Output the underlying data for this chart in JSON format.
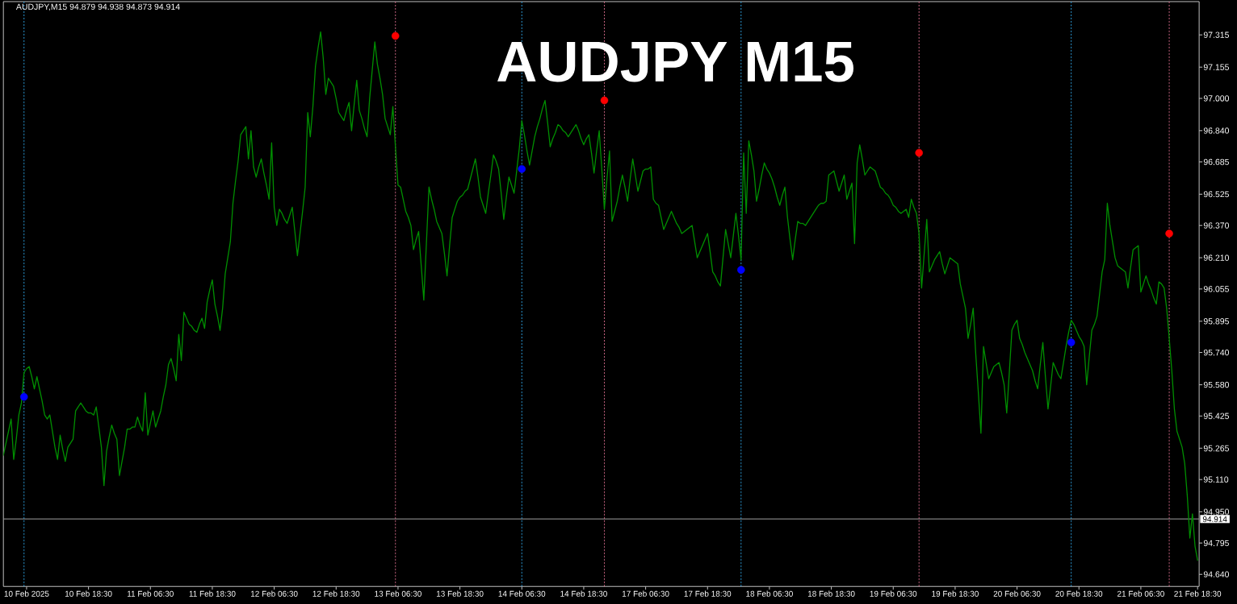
{
  "chart_data": {
    "type": "line",
    "title": "AUDJPY M15",
    "annotations": [
      "AUDJPY,M15 94.879 94.938 94.873 94.914"
    ],
    "categories": [
      null,
      null,
      null,
      null,
      null,
      null,
      null,
      null,
      null,
      "10 Feb 2025",
      null,
      null,
      null,
      null,
      null,
      null,
      null,
      null,
      null,
      null,
      null,
      null,
      null,
      null,
      null,
      null,
      null,
      null,
      null,
      null,
      null,
      null,
      null,
      "10 Feb 18:30",
      null,
      null,
      null,
      null,
      null,
      null,
      null,
      null,
      null,
      null,
      null,
      null,
      null,
      null,
      null,
      null,
      null,
      null,
      null,
      null,
      null,
      null,
      null,
      "11 Feb 06:30",
      null,
      null,
      null,
      null,
      null,
      null,
      null,
      null,
      null,
      null,
      null,
      null,
      null,
      null,
      null,
      null,
      null,
      null,
      null,
      null,
      null,
      null,
      null,
      "11 Feb 18:30",
      null,
      null,
      null,
      null,
      null,
      null,
      null,
      null,
      null,
      null,
      null,
      null,
      null,
      null,
      null,
      null,
      null,
      null,
      null,
      null,
      null,
      null,
      null,
      "12 Feb 06:30",
      null,
      null,
      null,
      null,
      null,
      null,
      null,
      null,
      null,
      null,
      null,
      null,
      null,
      null,
      null,
      null,
      null,
      null,
      null,
      null,
      null,
      null,
      null,
      "12 Feb 18:30",
      null,
      null,
      null,
      null,
      null,
      null,
      null,
      null,
      null,
      null,
      null,
      null,
      null,
      null,
      null,
      null,
      null,
      null,
      null,
      null,
      null,
      null,
      null,
      "13 Feb 06:30",
      null,
      null,
      null,
      null,
      null,
      null,
      null,
      null,
      null,
      null,
      null,
      null,
      null,
      null,
      null,
      null,
      null,
      null,
      null,
      null,
      null,
      null,
      null,
      "13 Feb 18:30",
      null,
      null,
      null,
      null,
      null,
      null,
      null,
      null,
      null,
      null,
      null,
      null,
      null,
      null,
      null,
      null,
      null,
      null,
      null,
      null,
      null,
      null,
      null,
      "14 Feb 06:30",
      null,
      null,
      null,
      null,
      null,
      null,
      null,
      null,
      null,
      null,
      null,
      null,
      null,
      null,
      null,
      null,
      null,
      null,
      null,
      null,
      null,
      null,
      null,
      "14 Feb 18:30",
      null,
      null,
      null,
      null,
      null,
      null,
      null,
      null,
      null,
      null,
      null,
      null,
      null,
      null,
      null,
      null,
      null,
      null,
      null,
      null,
      null,
      null,
      null,
      "17 Feb 06:30",
      null,
      null,
      null,
      null,
      null,
      null,
      null,
      null,
      null,
      null,
      null,
      null,
      null,
      null,
      null,
      null,
      null,
      null,
      null,
      null,
      null,
      null,
      null,
      "17 Feb 18:30",
      null,
      null,
      null,
      null,
      null,
      null,
      null,
      null,
      null,
      null,
      null,
      null,
      null,
      null,
      null,
      null,
      null,
      null,
      null,
      null,
      null,
      null,
      null,
      "18 Feb 06:30",
      null,
      null,
      null,
      null,
      null,
      null,
      null,
      null,
      null,
      null,
      null,
      null,
      null,
      null,
      null,
      null,
      null,
      null,
      null,
      null,
      null,
      null,
      null,
      "18 Feb 18:30",
      null,
      null,
      null,
      null,
      null,
      null,
      null,
      null,
      null,
      null,
      null,
      null,
      null,
      null,
      null,
      null,
      null,
      null,
      null,
      null,
      null,
      null,
      null,
      "19 Feb 06:30",
      null,
      null,
      null,
      null,
      null,
      null,
      null,
      null,
      null,
      null,
      null,
      null,
      null,
      null,
      null,
      null,
      null,
      null,
      null,
      null,
      null,
      null,
      null,
      "19 Feb 18:30",
      null,
      null,
      null,
      null,
      null,
      null,
      null,
      null,
      null,
      null,
      null,
      null,
      null,
      null,
      null,
      null,
      null,
      null,
      null,
      null,
      null,
      null,
      null,
      "20 Feb 06:30",
      null,
      null,
      null,
      null,
      null,
      null,
      null,
      null,
      null,
      null,
      null,
      null,
      null,
      null,
      null,
      null,
      null,
      null,
      null,
      null,
      null,
      null,
      null,
      "20 Feb 18:30",
      null,
      null,
      null,
      null,
      null,
      null,
      null,
      null,
      null,
      null,
      null,
      null,
      null,
      null,
      null,
      null,
      null,
      null,
      null,
      null,
      null,
      null,
      null,
      "21 Feb 06:30",
      null,
      null,
      null,
      null,
      null,
      null,
      null,
      null,
      null,
      null,
      null,
      null,
      null,
      null,
      null,
      null,
      null,
      null,
      null,
      null,
      null,
      "21 Feb 18:30"
    ],
    "ylim": [
      94.58,
      97.48
    ],
    "yticks": [
      {
        "value": 97.315,
        "label": "97.315"
      },
      {
        "value": 97.155,
        "label": "97.155"
      },
      {
        "value": 97.0,
        "label": "97.000"
      },
      {
        "value": 96.84,
        "label": "96.840"
      },
      {
        "value": 96.685,
        "label": "96.685"
      },
      {
        "value": 96.525,
        "label": "96.525"
      },
      {
        "value": 96.37,
        "label": "96.370"
      },
      {
        "value": 96.21,
        "label": "96.210"
      },
      {
        "value": 96.055,
        "label": "96.055"
      },
      {
        "value": 95.895,
        "label": "95.895"
      },
      {
        "value": 95.74,
        "label": "95.740"
      },
      {
        "value": 95.58,
        "label": "95.580"
      },
      {
        "value": 95.425,
        "label": "95.425"
      },
      {
        "value": 95.265,
        "label": "95.265"
      },
      {
        "value": 95.11,
        "label": "95.110"
      },
      {
        "value": 94.95,
        "label": "94.950"
      },
      {
        "value": 94.795,
        "label": "94.795"
      },
      {
        "value": 94.64,
        "label": "94.640"
      }
    ],
    "series": [
      {
        "color": "#008f00",
        "values": [
          95.23,
          95.29,
          95.35,
          95.41,
          95.21,
          95.31,
          95.43,
          95.49,
          95.64,
          95.66,
          95.67,
          95.62,
          95.56,
          95.62,
          95.56,
          95.5,
          95.43,
          95.41,
          95.43,
          95.35,
          95.27,
          95.21,
          95.33,
          95.26,
          95.2,
          95.27,
          95.29,
          95.31,
          95.45,
          95.47,
          95.49,
          95.47,
          95.45,
          95.44,
          95.44,
          95.43,
          95.47,
          95.37,
          95.27,
          95.08,
          95.25,
          95.32,
          95.38,
          95.34,
          95.31,
          95.13,
          95.2,
          95.27,
          95.36,
          95.36,
          95.37,
          95.37,
          95.42,
          95.38,
          95.35,
          95.54,
          95.33,
          95.39,
          95.45,
          95.37,
          95.41,
          95.45,
          95.52,
          95.58,
          95.68,
          95.71,
          95.66,
          95.6,
          95.83,
          95.7,
          95.94,
          95.91,
          95.88,
          95.87,
          95.85,
          95.84,
          95.88,
          95.91,
          95.86,
          95.99,
          96.05,
          96.1,
          95.98,
          95.92,
          95.85,
          95.96,
          96.13,
          96.21,
          96.29,
          96.48,
          96.59,
          96.69,
          96.82,
          96.84,
          96.86,
          96.7,
          96.84,
          96.66,
          96.61,
          96.66,
          96.7,
          96.63,
          96.57,
          96.5,
          96.78,
          96.46,
          96.37,
          96.45,
          96.43,
          96.4,
          96.38,
          96.42,
          96.46,
          96.34,
          96.22,
          96.33,
          96.44,
          96.56,
          96.93,
          96.81,
          96.96,
          97.16,
          97.25,
          97.33,
          97.2,
          97.02,
          97.1,
          97.08,
          97.06,
          97.0,
          96.93,
          96.91,
          96.89,
          96.94,
          96.98,
          96.84,
          96.97,
          97.09,
          96.94,
          96.9,
          96.85,
          96.81,
          97.0,
          97.14,
          97.28,
          97.17,
          97.1,
          97.02,
          96.9,
          96.86,
          96.82,
          96.96,
          96.76,
          96.57,
          96.56,
          96.5,
          96.44,
          96.41,
          96.37,
          96.25,
          96.3,
          96.34,
          96.17,
          96.0,
          96.28,
          96.56,
          96.5,
          96.45,
          96.39,
          96.36,
          96.33,
          96.23,
          96.12,
          96.27,
          96.41,
          96.45,
          96.49,
          96.51,
          96.52,
          96.54,
          96.55,
          96.6,
          96.65,
          96.7,
          96.61,
          96.51,
          96.47,
          96.43,
          96.53,
          96.62,
          96.72,
          96.69,
          96.65,
          96.53,
          96.4,
          96.51,
          96.61,
          96.57,
          96.53,
          96.64,
          96.75,
          96.89,
          96.82,
          96.74,
          96.67,
          96.74,
          96.81,
          96.86,
          96.9,
          96.95,
          96.99,
          96.88,
          96.76,
          96.8,
          96.83,
          96.87,
          96.86,
          96.84,
          96.83,
          96.81,
          96.83,
          96.85,
          96.87,
          96.84,
          96.8,
          96.77,
          96.8,
          96.82,
          96.73,
          96.63,
          96.74,
          96.84,
          96.65,
          96.45,
          96.6,
          96.74,
          96.39,
          96.44,
          96.49,
          96.56,
          96.62,
          96.56,
          96.49,
          96.6,
          96.7,
          96.62,
          96.54,
          96.59,
          96.64,
          96.65,
          96.65,
          96.66,
          96.5,
          96.48,
          96.47,
          96.41,
          96.35,
          96.38,
          96.41,
          96.44,
          96.41,
          96.38,
          96.36,
          96.33,
          96.34,
          96.35,
          96.36,
          96.37,
          96.29,
          96.21,
          96.24,
          96.27,
          96.3,
          96.33,
          96.24,
          96.14,
          96.12,
          96.09,
          96.07,
          96.21,
          96.35,
          96.28,
          96.21,
          96.32,
          96.43,
          96.32,
          96.2,
          96.73,
          96.43,
          96.79,
          96.72,
          96.64,
          96.49,
          96.55,
          96.62,
          96.68,
          96.65,
          96.63,
          96.6,
          96.56,
          96.51,
          96.47,
          96.52,
          96.56,
          96.41,
          96.3,
          96.2,
          96.3,
          96.39,
          96.38,
          96.38,
          96.37,
          96.39,
          96.41,
          96.43,
          96.45,
          96.47,
          96.48,
          96.48,
          96.49,
          96.62,
          96.63,
          96.64,
          96.59,
          96.54,
          96.58,
          96.62,
          96.5,
          96.54,
          96.58,
          96.28,
          96.68,
          96.77,
          96.7,
          96.62,
          96.64,
          96.66,
          96.65,
          96.64,
          96.6,
          96.56,
          96.55,
          96.53,
          96.52,
          96.5,
          96.47,
          96.46,
          96.44,
          96.43,
          96.44,
          96.45,
          96.41,
          96.5,
          96.46,
          96.43,
          96.33,
          96.06,
          96.23,
          96.4,
          96.14,
          96.17,
          96.2,
          96.22,
          96.24,
          96.18,
          96.13,
          96.17,
          96.21,
          96.2,
          96.19,
          96.18,
          96.08,
          96.02,
          95.96,
          95.81,
          95.88,
          95.96,
          95.73,
          95.54,
          95.34,
          95.77,
          95.69,
          95.61,
          95.64,
          95.67,
          95.68,
          95.69,
          95.64,
          95.58,
          95.44,
          95.64,
          95.85,
          95.88,
          95.9,
          95.81,
          95.78,
          95.74,
          95.71,
          95.68,
          95.65,
          95.6,
          95.56,
          95.68,
          95.79,
          95.62,
          95.46,
          95.57,
          95.69,
          95.66,
          95.63,
          95.61,
          95.69,
          95.77,
          95.84,
          95.9,
          95.88,
          95.85,
          95.82,
          95.8,
          95.77,
          95.58,
          95.72,
          95.85,
          95.88,
          95.92,
          96.03,
          96.14,
          96.2,
          96.48,
          96.37,
          96.29,
          96.21,
          96.17,
          96.16,
          96.15,
          96.14,
          96.06,
          96.16,
          96.25,
          96.26,
          96.27,
          96.04,
          96.08,
          96.12,
          96.08,
          96.05,
          96.01,
          95.98,
          96.09,
          96.08,
          96.06,
          95.96,
          95.81,
          95.65,
          95.46,
          95.35,
          95.31,
          95.27,
          95.19,
          95.03,
          94.82,
          94.94,
          94.78,
          94.71
        ]
      },
      {
        "type": "scatter",
        "color": "#0000ff",
        "marker": "circle",
        "values": [
          null,
          null,
          null,
          null,
          null,
          null,
          null,
          null,
          95.52,
          null,
          null,
          null,
          null,
          null,
          null,
          null,
          null,
          null,
          null,
          null,
          null,
          null,
          null,
          null,
          null,
          null,
          null,
          null,
          null,
          null,
          null,
          null,
          null,
          null,
          null,
          null,
          null,
          null,
          null,
          null,
          null,
          null,
          null,
          null,
          null,
          null,
          null,
          null,
          null,
          null,
          null,
          null,
          null,
          null,
          null,
          null,
          null,
          null,
          null,
          null,
          null,
          null,
          null,
          null,
          null,
          null,
          null,
          null,
          null,
          null,
          null,
          null,
          null,
          null,
          null,
          null,
          null,
          null,
          null,
          null,
          null,
          null,
          null,
          null,
          null,
          null,
          null,
          null,
          null,
          null,
          null,
          null,
          null,
          null,
          null,
          null,
          null,
          null,
          null,
          null,
          null,
          null,
          null,
          null,
          null,
          null,
          null,
          null,
          null,
          null,
          null,
          null,
          null,
          null,
          null,
          null,
          null,
          null,
          null,
          null,
          null,
          null,
          null,
          null,
          null,
          null,
          null,
          null,
          null,
          null,
          null,
          null,
          null,
          null,
          null,
          null,
          null,
          null,
          null,
          null,
          null,
          null,
          null,
          null,
          null,
          null,
          null,
          null,
          null,
          null,
          null,
          null,
          null,
          null,
          null,
          null,
          null,
          null,
          null,
          null,
          null,
          null,
          null,
          null,
          null,
          null,
          null,
          null,
          null,
          null,
          null,
          null,
          null,
          null,
          null,
          null,
          null,
          null,
          null,
          null,
          null,
          null,
          null,
          null,
          null,
          null,
          null,
          null,
          null,
          null,
          null,
          null,
          null,
          null,
          null,
          null,
          null,
          null,
          null,
          null,
          null,
          96.65,
          null,
          null,
          null,
          null,
          null,
          null,
          null,
          null,
          null,
          null,
          null,
          null,
          null,
          null,
          null,
          null,
          null,
          null,
          null,
          null,
          null,
          null,
          null,
          null,
          null,
          null,
          null,
          null,
          null,
          null,
          null,
          null,
          null,
          null,
          null,
          null,
          null,
          null,
          null,
          null,
          null,
          null,
          null,
          null,
          null,
          null,
          null,
          null,
          null,
          null,
          null,
          null,
          null,
          null,
          null,
          null,
          null,
          null,
          null,
          null,
          null,
          null,
          null,
          null,
          null,
          null,
          null,
          null,
          null,
          null,
          null,
          null,
          null,
          null,
          null,
          null,
          null,
          null,
          null,
          null,
          null,
          null,
          null,
          null,
          96.15,
          null,
          null,
          null,
          null,
          null,
          null,
          null,
          null,
          null,
          null,
          null,
          null,
          null,
          null,
          null,
          null,
          null,
          null,
          null,
          null,
          null,
          null,
          null,
          null,
          null,
          null,
          null,
          null,
          null,
          null,
          null,
          null,
          null,
          null,
          null,
          null,
          null,
          null,
          null,
          null,
          null,
          null,
          null,
          null,
          null,
          null,
          null,
          null,
          null,
          null,
          null,
          null,
          null,
          null,
          null,
          null,
          null,
          null,
          null,
          null,
          null,
          null,
          null,
          null,
          null,
          null,
          null,
          null,
          null,
          null,
          null,
          null,
          null,
          null,
          null,
          null,
          null,
          null,
          null,
          null,
          null,
          null,
          null,
          null,
          null,
          null,
          null,
          null,
          null,
          null,
          null,
          null,
          null,
          null,
          null,
          null,
          null,
          null,
          null,
          null,
          null,
          null,
          null,
          null,
          null,
          null,
          null,
          null,
          null,
          null,
          null,
          null,
          null,
          null,
          null,
          null,
          null,
          null,
          null,
          null,
          null,
          null,
          null,
          null,
          null,
          null,
          null,
          95.79,
          null,
          null,
          null,
          null,
          null,
          null,
          null,
          null,
          null,
          null,
          null,
          null,
          null,
          null,
          null,
          null,
          null,
          null,
          null,
          null,
          null,
          null,
          null,
          null,
          null,
          null,
          null,
          null,
          null,
          null,
          null,
          null,
          null,
          null,
          null,
          null,
          null,
          null,
          null,
          null,
          null,
          null,
          null,
          null,
          null,
          null,
          null,
          null,
          null
        ]
      },
      {
        "type": "scatter",
        "color": "#ff0000",
        "marker": "circle",
        "values": [
          null,
          null,
          null,
          null,
          null,
          null,
          null,
          null,
          null,
          null,
          null,
          null,
          null,
          null,
          null,
          null,
          null,
          null,
          null,
          null,
          null,
          null,
          null,
          null,
          null,
          null,
          null,
          null,
          null,
          null,
          null,
          null,
          null,
          null,
          null,
          null,
          null,
          null,
          null,
          null,
          null,
          null,
          null,
          null,
          null,
          null,
          null,
          null,
          null,
          null,
          null,
          null,
          null,
          null,
          null,
          null,
          null,
          null,
          null,
          null,
          null,
          null,
          null,
          null,
          null,
          null,
          null,
          null,
          null,
          null,
          null,
          null,
          null,
          null,
          null,
          null,
          null,
          null,
          null,
          null,
          null,
          null,
          null,
          null,
          null,
          null,
          null,
          null,
          null,
          null,
          null,
          null,
          null,
          null,
          null,
          null,
          null,
          null,
          null,
          null,
          null,
          null,
          null,
          null,
          null,
          null,
          null,
          null,
          null,
          null,
          null,
          null,
          null,
          null,
          null,
          null,
          null,
          null,
          null,
          null,
          null,
          null,
          null,
          null,
          null,
          null,
          null,
          null,
          null,
          null,
          null,
          null,
          null,
          null,
          null,
          null,
          null,
          null,
          null,
          null,
          null,
          null,
          null,
          null,
          null,
          null,
          null,
          null,
          null,
          null,
          null,
          null,
          97.31,
          null,
          null,
          null,
          null,
          null,
          null,
          null,
          null,
          null,
          null,
          null,
          null,
          null,
          null,
          null,
          null,
          null,
          null,
          null,
          null,
          null,
          null,
          null,
          null,
          null,
          null,
          null,
          null,
          null,
          null,
          null,
          null,
          null,
          null,
          null,
          null,
          null,
          null,
          null,
          null,
          null,
          null,
          null,
          null,
          null,
          null,
          null,
          null,
          null,
          null,
          null,
          null,
          null,
          null,
          null,
          null,
          null,
          null,
          null,
          null,
          null,
          null,
          null,
          null,
          null,
          null,
          null,
          null,
          null,
          null,
          null,
          null,
          null,
          null,
          null,
          null,
          null,
          null,
          null,
          null,
          96.99,
          null,
          null,
          null,
          null,
          null,
          null,
          null,
          null,
          null,
          null,
          null,
          null,
          null,
          null,
          null,
          null,
          null,
          null,
          null,
          null,
          null,
          null,
          null,
          null,
          null,
          null,
          null,
          null,
          null,
          null,
          null,
          null,
          null,
          null,
          null,
          null,
          null,
          null,
          null,
          null,
          null,
          null,
          null,
          null,
          null,
          null,
          null,
          null,
          null,
          null,
          null,
          null,
          null,
          null,
          null,
          null,
          null,
          null,
          null,
          null,
          null,
          null,
          null,
          null,
          null,
          null,
          null,
          null,
          null,
          null,
          null,
          null,
          null,
          null,
          null,
          null,
          null,
          null,
          null,
          null,
          null,
          null,
          null,
          null,
          null,
          null,
          null,
          null,
          null,
          null,
          null,
          null,
          null,
          null,
          null,
          null,
          null,
          null,
          null,
          null,
          null,
          null,
          null,
          null,
          null,
          null,
          null,
          null,
          null,
          null,
          null,
          null,
          null,
          null,
          null,
          null,
          null,
          null,
          null,
          null,
          null,
          96.73,
          null,
          null,
          null,
          null,
          null,
          null,
          null,
          null,
          null,
          null,
          null,
          null,
          null,
          null,
          null,
          null,
          null,
          null,
          null,
          null,
          null,
          null,
          null,
          null,
          null,
          null,
          null,
          null,
          null,
          null,
          null,
          null,
          null,
          null,
          null,
          null,
          null,
          null,
          null,
          null,
          null,
          null,
          null,
          null,
          null,
          null,
          null,
          null,
          null,
          null,
          null,
          null,
          null,
          null,
          null,
          null,
          null,
          null,
          null,
          null,
          null,
          null,
          null,
          null,
          null,
          null,
          null,
          null,
          null,
          null,
          null,
          null,
          null,
          null,
          null,
          null,
          null,
          null,
          null,
          null,
          null,
          null,
          null,
          null,
          null,
          null,
          null,
          null,
          null,
          null,
          null,
          null,
          null,
          null,
          null,
          null,
          96.33,
          null,
          null,
          null,
          null,
          null,
          null,
          null,
          null,
          null,
          null,
          null
        ]
      }
    ],
    "ref_lines": [
      {
        "axis": "y",
        "value": 94.914,
        "label": "94.914",
        "color": "#a0a0a0",
        "line_style": "solid"
      }
    ]
  }
}
